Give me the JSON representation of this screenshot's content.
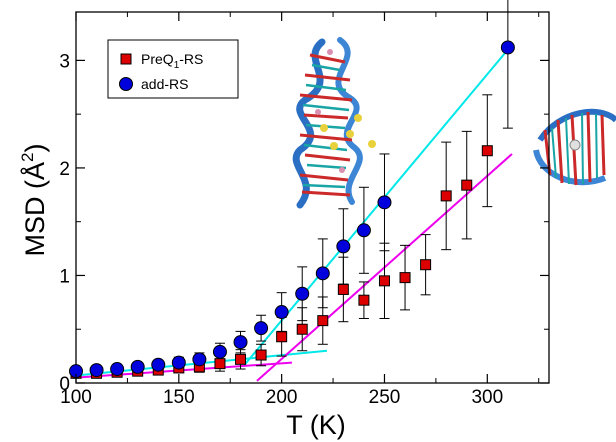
{
  "chart_data": {
    "type": "scatter",
    "xlabel": "T (K)",
    "ylabel_main": "MSD (Å",
    "ylabel_sup": "2",
    "ylabel_end": ")",
    "xlim": [
      100,
      330
    ],
    "ylim": [
      0,
      3.45
    ],
    "xticks": [
      100,
      150,
      200,
      250,
      300
    ],
    "yticks": [
      0,
      1,
      2,
      3
    ],
    "legend": {
      "placement": "top-left",
      "entries": [
        {
          "series": 0,
          "sub": "1"
        },
        {
          "series": 1
        }
      ]
    },
    "series": [
      {
        "name": "PreQ",
        "name_sub": "1",
        "name_suffix": "-RS",
        "marker": "square",
        "color": "#dd0000",
        "x": [
          100,
          110,
          120,
          130,
          140,
          150,
          160,
          170,
          180,
          190,
          200,
          210,
          220,
          230,
          240,
          250,
          260,
          270,
          280,
          290,
          300
        ],
        "y": [
          0.09,
          0.09,
          0.1,
          0.11,
          0.12,
          0.14,
          0.15,
          0.18,
          0.22,
          0.26,
          0.43,
          0.5,
          0.58,
          0.87,
          0.77,
          0.95,
          0.98,
          1.1,
          1.74,
          1.84,
          2.16
        ],
        "err": [
          0.02,
          0.02,
          0.03,
          0.03,
          0.03,
          0.04,
          0.05,
          0.07,
          0.09,
          0.1,
          0.18,
          0.2,
          0.22,
          0.3,
          0.17,
          0.35,
          0.3,
          0.28,
          0.5,
          0.5,
          0.52
        ]
      },
      {
        "name": "add-RS",
        "marker": "circle",
        "color": "#0000dd",
        "x": [
          100,
          110,
          120,
          130,
          140,
          150,
          160,
          170,
          180,
          190,
          200,
          210,
          220,
          230,
          240,
          250,
          310
        ],
        "y": [
          0.11,
          0.12,
          0.13,
          0.15,
          0.17,
          0.19,
          0.22,
          0.29,
          0.38,
          0.51,
          0.66,
          0.83,
          1.02,
          1.27,
          1.42,
          1.68,
          3.12
        ],
        "err": [
          0.02,
          0.02,
          0.03,
          0.03,
          0.04,
          0.05,
          0.06,
          0.08,
          0.1,
          0.12,
          0.18,
          0.25,
          0.32,
          0.35,
          0.4,
          0.45,
          0.75
        ]
      }
    ],
    "fit_lines": [
      {
        "color": "#00e8e8",
        "x": [
          100,
          222
        ],
        "y": [
          0.07,
          0.3
        ]
      },
      {
        "color": "#00e8e8",
        "x": [
          182,
          310
        ],
        "y": [
          0.17,
          3.1
        ]
      },
      {
        "color": "#ee00ee",
        "x": [
          100,
          205
        ],
        "y": [
          0.05,
          0.19
        ]
      },
      {
        "color": "#ee00ee",
        "x": [
          188,
          312
        ],
        "y": [
          0.02,
          2.13
        ]
      }
    ],
    "grid": false
  }
}
